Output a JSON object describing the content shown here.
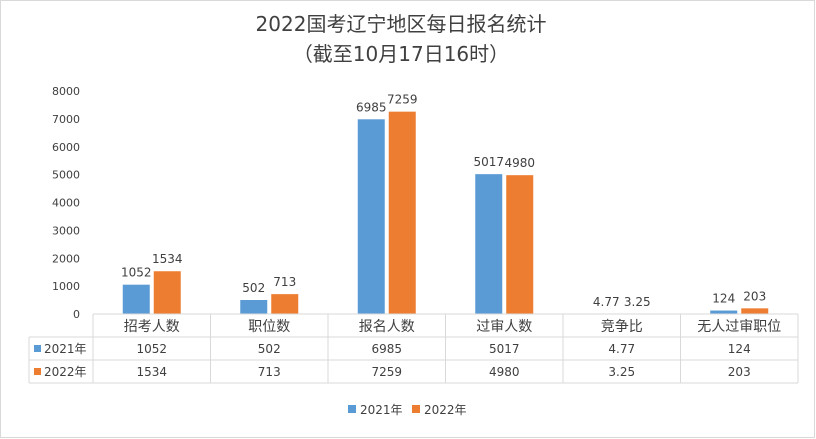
{
  "chart_data": {
    "type": "bar",
    "title": "2022国考辽宁地区每日报名统计",
    "subtitle": "（截至10月17日16时）",
    "categories": [
      "招考人数",
      "职位数",
      "报名人数",
      "过审人数",
      "竞争比",
      "无人过审职位"
    ],
    "series": [
      {
        "name": "2021年",
        "color": "#5b9bd5",
        "values": [
          1052,
          502,
          6985,
          5017,
          4.77,
          124
        ]
      },
      {
        "name": "2022年",
        "color": "#ed7d31",
        "values": [
          1534,
          713,
          7259,
          4980,
          3.25,
          203
        ]
      }
    ],
    "data_labels": [
      [
        "1052",
        "502",
        "6985",
        "5017",
        "4.77",
        "124"
      ],
      [
        "1534",
        "713",
        "7259",
        "4980",
        "3.25",
        "203"
      ]
    ],
    "yticks": [
      "0",
      "1000",
      "2000",
      "3000",
      "4000",
      "5000",
      "6000",
      "7000",
      "8000"
    ],
    "ylim": [
      0,
      8000
    ],
    "xlabel": "",
    "ylabel": "",
    "grid": false,
    "legend_position": "bottom",
    "data_table": true
  }
}
